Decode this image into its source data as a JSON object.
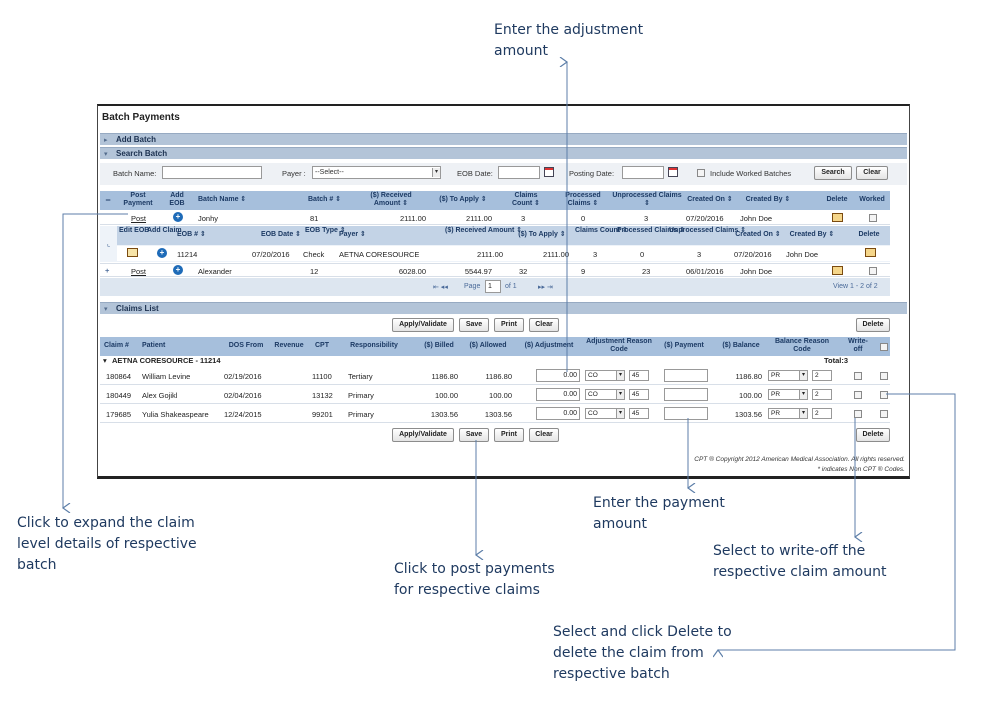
{
  "callouts": {
    "adjustment": "Enter the adjustment amount",
    "expand": "Click to expand the claim level details of respective batch",
    "payment": "Enter the payment amount",
    "writeoff": "Select to write-off the respective claim amount",
    "post": "Click to post payments for respective claims",
    "delete": "Select and click Delete to delete the claim from respective batch"
  },
  "app": {
    "title": "Batch Payments",
    "sections": {
      "add_batch": "Add Batch",
      "search_batch": "Search Batch",
      "claims_list": "Claims List"
    },
    "search": {
      "batch_name_label": "Batch Name:",
      "payer_label": "Payer :",
      "payer_value": "--Select--",
      "eob_date_label": "EOB Date:",
      "posting_date_label": "Posting Date:",
      "include_worked_label": "Include Worked Batches",
      "search_btn": "Search",
      "clear_btn": "Clear"
    },
    "batch_grid": {
      "headers": [
        "Post Payment",
        "Add EOB",
        "Batch Name ⇕",
        "Batch # ⇕",
        "($) Received Amount ⇕",
        "($) To Apply ⇕",
        "Claims Count ⇕",
        "Processed Claims ⇕",
        "Unprocessed Claims ⇕",
        "Created On ⇕",
        "Created By ⇕",
        "Delete",
        "Worked"
      ],
      "collapse_symbol": "−",
      "expand_symbol": "+",
      "rows": [
        {
          "post": "Post",
          "name": "Jonhy",
          "batch": "81",
          "received": "2111.00",
          "apply": "2111.00",
          "claims": "3",
          "processed": "0",
          "unprocessed": "3",
          "created_on": "07/20/2016",
          "created_by": "John Doe"
        },
        {
          "post": "Post",
          "name": "Alexander",
          "batch": "12",
          "received": "6028.00",
          "apply": "5544.97",
          "claims": "32",
          "processed": "9",
          "unprocessed": "23",
          "created_on": "06/01/2016",
          "created_by": "John Doe"
        }
      ],
      "sub_headers": [
        "Edit EOB",
        "Add Claim",
        "EOB # ⇕",
        "EOB Date ⇕",
        "EOB Type ⇕",
        "Payer ⇕",
        "($) Received Amount ⇕",
        "($) To Apply ⇕",
        "Claims Count ⇕",
        "Processed Claims ⇕",
        "Unprocessed Claims ⇕",
        "Created On ⇕",
        "Created By ⇕",
        "Delete"
      ],
      "sub_row": {
        "eob": "11214",
        "eob_date": "07/20/2016",
        "eob_type": "Check",
        "payer": "AETNA CORESOURCE",
        "received": "2111.00",
        "apply": "2111.00",
        "claims": "3",
        "processed": "0",
        "unprocessed": "3",
        "created_on": "07/20/2016",
        "created_by": "John Doe"
      },
      "pager": {
        "page_label": "Page",
        "page_value": "1",
        "of_label": "of 1",
        "view": "View 1 - 2 of 2"
      }
    },
    "claims": {
      "buttons": {
        "apply": "Apply/Validate",
        "save": "Save",
        "print": "Print",
        "clear": "Clear",
        "delete": "Delete"
      },
      "headers": [
        "Claim #",
        "Patient",
        "DOS From",
        "Revenue",
        "CPT",
        "Responsibility",
        "($) Billed",
        "($) Allowed",
        "($) Adjustment",
        "Adjustment Reason Code",
        "($) Payment",
        "($) Balance",
        "Balance Reason Code",
        "Write-off"
      ],
      "group_label": "AETNA CORESOURCE - 11214",
      "total_label": "Total:3",
      "rows": [
        {
          "claim": "180864",
          "patient": "William Levine",
          "dos": "02/19/2016",
          "cpt": "11100",
          "resp": "Tertiary",
          "billed": "1186.80",
          "allowed": "1186.80",
          "adjustment": "0.00",
          "adj_code": "CO",
          "adj_num": "45",
          "balance": "1186.80",
          "bal_code": "PR",
          "bal_num": "2"
        },
        {
          "claim": "180449",
          "patient": "Alex Gojikl",
          "dos": "02/04/2016",
          "cpt": "13132",
          "resp": "Primary",
          "billed": "100.00",
          "allowed": "100.00",
          "adjustment": "0.00",
          "adj_code": "CO",
          "adj_num": "45",
          "balance": "100.00",
          "bal_code": "PR",
          "bal_num": "2"
        },
        {
          "claim": "179685",
          "patient": "Yulia Shakeaspeare",
          "dos": "12/24/2015",
          "cpt": "99201",
          "resp": "Primary",
          "billed": "1303.56",
          "allowed": "1303.56",
          "adjustment": "0.00",
          "adj_code": "CO",
          "adj_num": "45",
          "balance": "1303.56",
          "bal_code": "PR",
          "bal_num": "2"
        }
      ]
    },
    "footer": {
      "copyright": "CPT ® Copyright 2012 American Medical Association. All rights reserved.",
      "note": "* indicates Non CPT ® Codes."
    }
  }
}
